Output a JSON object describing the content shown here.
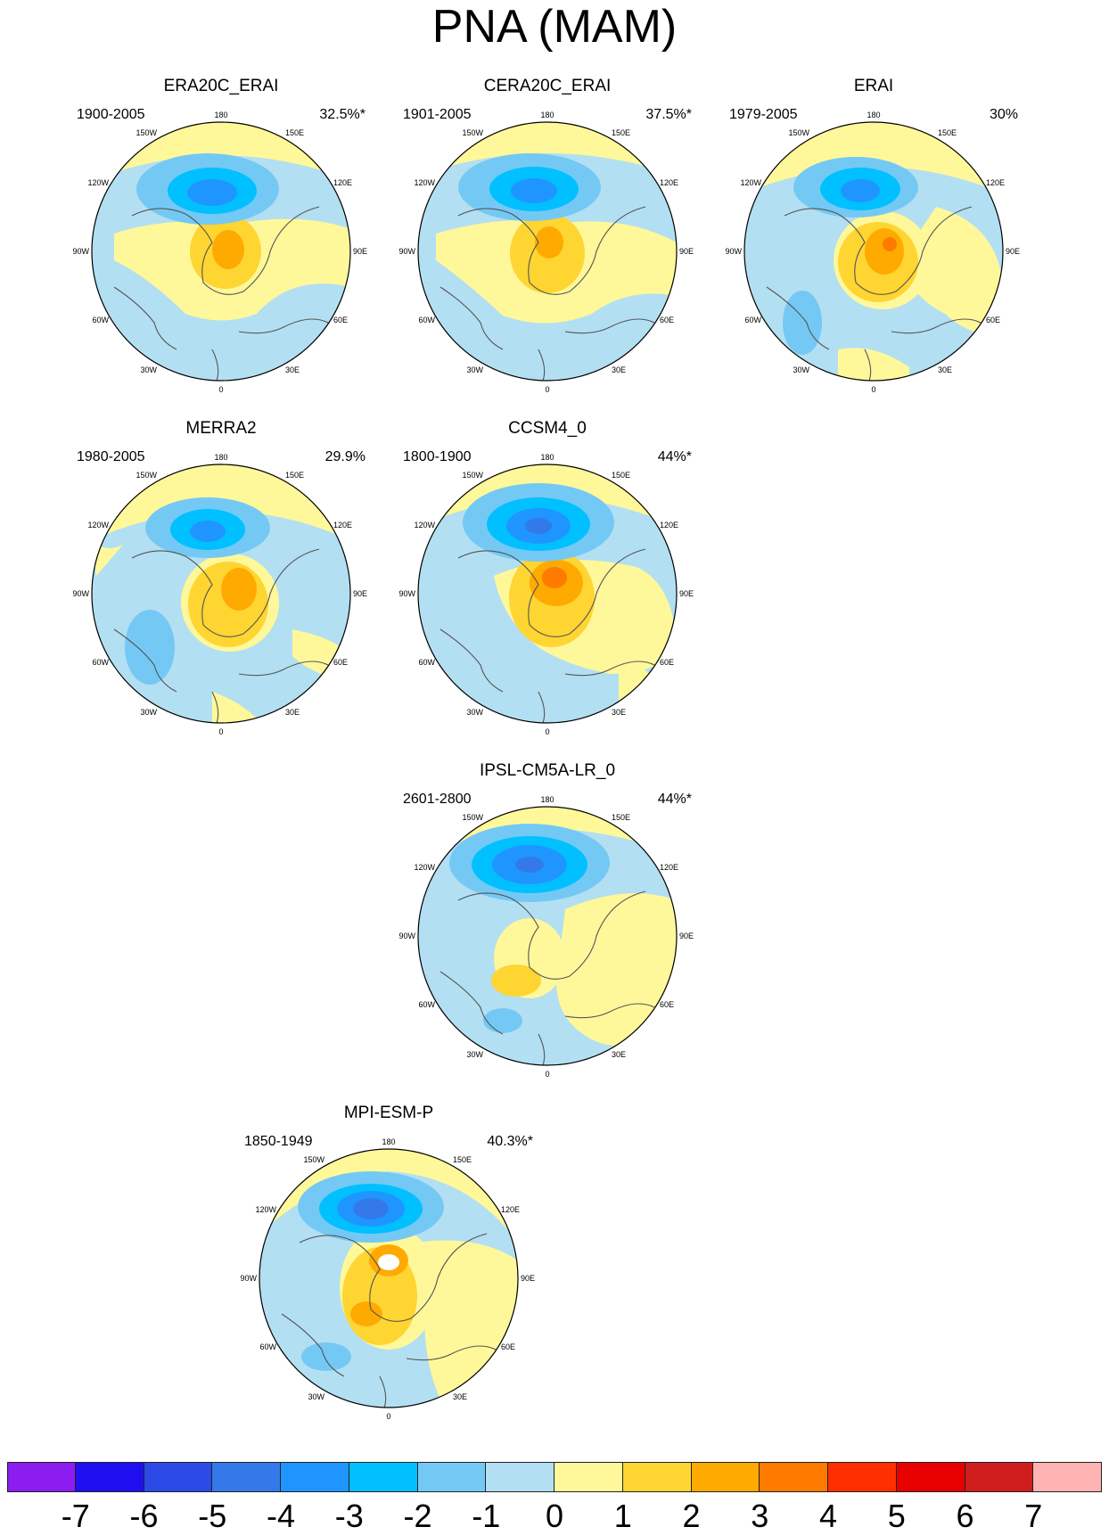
{
  "title": "PNA (MAM)",
  "lon_labels": [
    "180",
    "150E",
    "120E",
    "90E",
    "60E",
    "30E",
    "0",
    "30W",
    "60W",
    "90W",
    "120W",
    "150W"
  ],
  "panels": [
    {
      "name": "ERA20C_ERAI",
      "period": "1900-2005",
      "variance": "32.5%*"
    },
    {
      "name": "CERA20C_ERAI",
      "period": "1901-2005",
      "variance": "37.5%*"
    },
    {
      "name": "ERAI",
      "period": "1979-2005",
      "variance": "30%"
    },
    {
      "name": "MERRA2",
      "period": "1980-2005",
      "variance": "29.9%"
    },
    {
      "name": "CCSM4_0",
      "period": "1800-1900",
      "variance": "44%*"
    },
    {
      "name": "IPSL-CM5A-LR_0",
      "period": "2601-2800",
      "variance": "44%*"
    },
    {
      "name": "MPI-ESM-P",
      "period": "1850-1949",
      "variance": "40.3%*"
    }
  ],
  "colorbar": {
    "labels": [
      "-7",
      "-6",
      "-5",
      "-4",
      "-3",
      "-2",
      "-1",
      "0",
      "1",
      "2",
      "3",
      "4",
      "5",
      "6",
      "7"
    ],
    "colors": [
      "#8c1cf0",
      "#1f0ff0",
      "#2b4ae8",
      "#3379ea",
      "#1f96ff",
      "#00c0ff",
      "#74c9f4",
      "#b3dff2",
      "#fff89a",
      "#ffd532",
      "#ffaa00",
      "#ff7b00",
      "#ff2f00",
      "#e80000",
      "#d01d1d",
      "#ffb3b3"
    ]
  }
}
